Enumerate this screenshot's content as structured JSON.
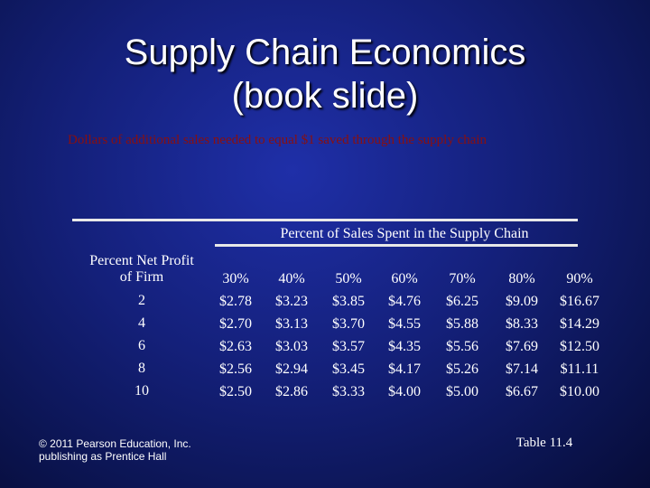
{
  "slide": {
    "title_line1": "Supply Chain Economics",
    "title_line2": "(book slide)",
    "subtitle": "Dollars of additional sales needed to equal $1 saved through the supply chain",
    "copyright": "© 2011 Pearson Education, Inc. publishing as Prentice Hall",
    "table_label": "Table 11.4"
  },
  "table": {
    "group_header": "Percent of Sales Spent in the Supply Chain",
    "row_header_line1": "Percent Net Profit",
    "row_header_line2": "of Firm",
    "columns": [
      "30%",
      "40%",
      "50%",
      "60%",
      "70%",
      "80%",
      "90%"
    ],
    "profits": [
      "2",
      "4",
      "6",
      "8",
      "10"
    ],
    "values": [
      [
        "$2.78",
        "$3.23",
        "$3.85",
        "$4.76",
        "$6.25",
        "$9.09",
        "$16.67"
      ],
      [
        "$2.70",
        "$3.13",
        "$3.70",
        "$4.55",
        "$5.88",
        "$8.33",
        "$14.29"
      ],
      [
        "$2.63",
        "$3.03",
        "$3.57",
        "$4.35",
        "$5.56",
        "$7.69",
        "$12.50"
      ],
      [
        "$2.56",
        "$2.94",
        "$3.45",
        "$4.17",
        "$5.26",
        "$7.14",
        "$11.11"
      ],
      [
        "$2.50",
        "$2.86",
        "$3.33",
        "$4.00",
        "$5.00",
        "$6.67",
        "$10.00"
      ]
    ]
  }
}
